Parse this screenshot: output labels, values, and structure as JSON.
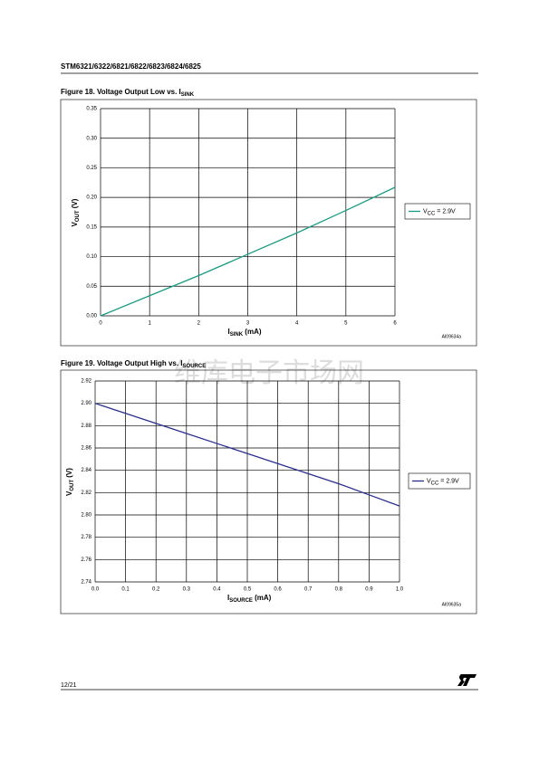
{
  "header": "STM6321/6322/6821/6822/6823/6824/6825",
  "footer": "12/21",
  "watermark": "维库电子市场网",
  "chart_data": [
    {
      "type": "line",
      "title": "Figure 18. Voltage Output Low vs. I",
      "title_sub": "SINK",
      "x_label": "I",
      "x_label_sub": "SINK",
      "x_label_unit": " (mA)",
      "y_label": "V",
      "y_label_sub": "OUT",
      "y_label_unit": " (V)",
      "code": "AI09634a",
      "x": [
        0,
        1,
        2,
        3,
        4,
        5,
        6
      ],
      "series": [
        {
          "name": "V",
          "name_sub": "CC",
          "name_rest": " = 2.9V",
          "color": "#1a9a80",
          "values": [
            0,
            0.034,
            0.068,
            0.104,
            0.14,
            0.178,
            0.217
          ]
        }
      ],
      "xlim": [
        0,
        6
      ],
      "xticks": [
        0,
        1,
        2,
        3,
        4,
        5,
        6
      ],
      "ylim": [
        0,
        0.35
      ],
      "yticks": [
        {
          "value": 0,
          "label": "0.00"
        },
        {
          "value": 0.05,
          "label": "0.05"
        },
        {
          "value": 0.1,
          "label": "0.10"
        },
        {
          "value": 0.15,
          "label": "0.15"
        },
        {
          "value": 0.2,
          "label": "0.20"
        },
        {
          "value": 0.25,
          "label": "0.25"
        },
        {
          "value": 0.3,
          "label": "0.30"
        },
        {
          "value": 0.35,
          "label": "0.35"
        }
      ],
      "grid": true,
      "legend": "right"
    },
    {
      "type": "line",
      "title": "Figure 19. Voltage Output High vs. I",
      "title_sub": "SOURCE",
      "x_label": "I",
      "x_label_sub": "SOURCE",
      "x_label_unit": " (mA)",
      "y_label": "V",
      "y_label_sub": "OUT",
      "y_label_unit": " (V)",
      "code": "AI09635a",
      "x": [
        0,
        0.1,
        0.2,
        0.3,
        0.4,
        0.5,
        0.6,
        0.7,
        0.8,
        0.9,
        1
      ],
      "series": [
        {
          "name": "V",
          "name_sub": "CC",
          "name_rest": " = 2.9V",
          "color": "#2b2f8a",
          "values": [
            2.9,
            2.891,
            2.882,
            2.873,
            2.864,
            2.855,
            2.846,
            2.837,
            2.828,
            2.818,
            2.808
          ]
        }
      ],
      "xlim": [
        0,
        1
      ],
      "xticks": [
        {
          "value": 0,
          "label": "0.0"
        },
        0.1,
        0.2,
        0.3,
        0.4,
        0.5,
        0.6,
        0.7,
        0.8,
        0.9,
        {
          "value": 1,
          "label": "1.0"
        }
      ],
      "ylim": [
        2.74,
        2.92
      ],
      "yticks": [
        2.74,
        2.76,
        2.78,
        {
          "value": 2.8,
          "label": "2.80"
        },
        2.82,
        2.84,
        2.86,
        2.88,
        {
          "value": 2.9,
          "label": "2.90"
        },
        2.92
      ],
      "grid": true,
      "legend": "right"
    }
  ]
}
